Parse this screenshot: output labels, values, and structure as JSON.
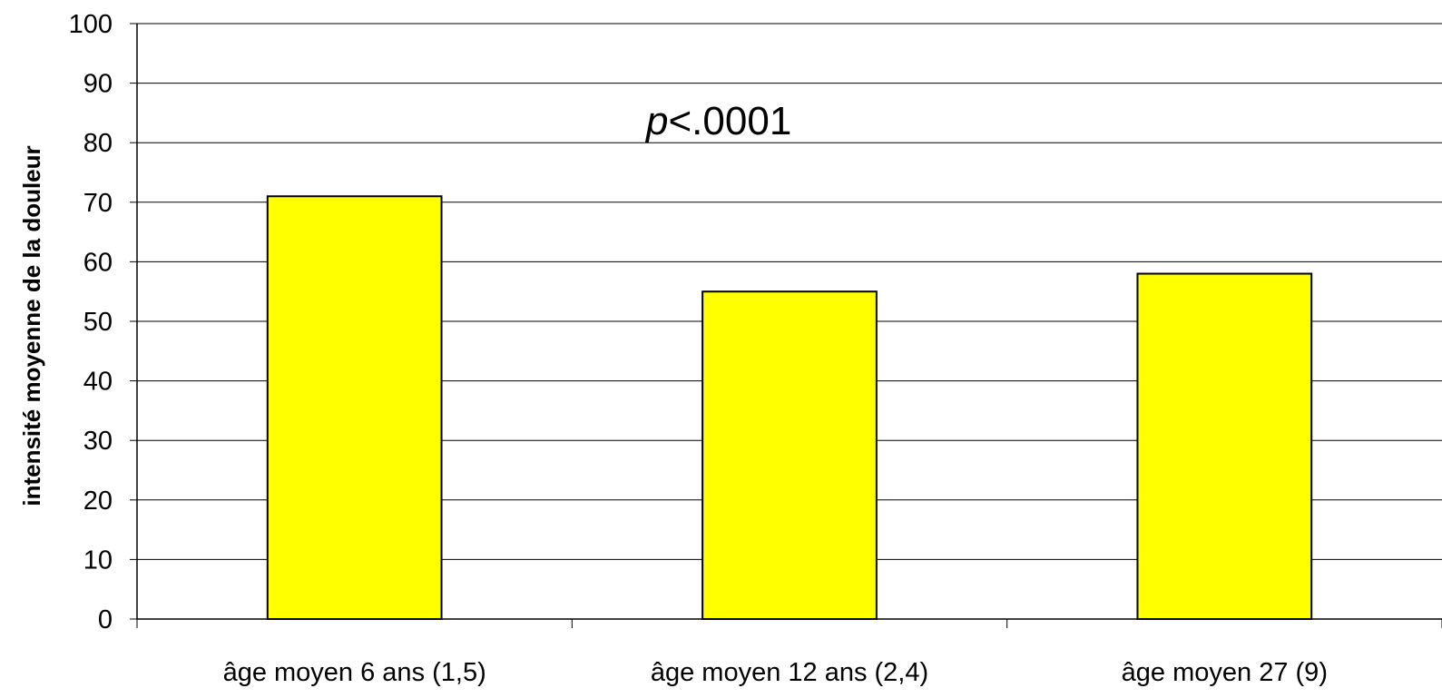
{
  "chart_data": {
    "type": "bar",
    "categories": [
      "âge moyen 6 ans (1,5)",
      "âge moyen 12 ans (2,4)",
      "âge moyen 27 (9)"
    ],
    "values": [
      71,
      55,
      58
    ],
    "title": "",
    "xlabel": "",
    "ylabel": "intensité moyenne de la douleur",
    "ylim": [
      0,
      100
    ],
    "yticks": [
      "0",
      "10",
      "20",
      "30",
      "40",
      "50",
      "60",
      "70",
      "80",
      "90",
      "100"
    ],
    "grid": "horizontal",
    "legend": "none",
    "annotation": {
      "p": "p",
      "rest": "<.0001"
    },
    "colors": {
      "bar_fill": "#ffff00",
      "bar_stroke": "#000000",
      "grid": "#000000"
    }
  }
}
